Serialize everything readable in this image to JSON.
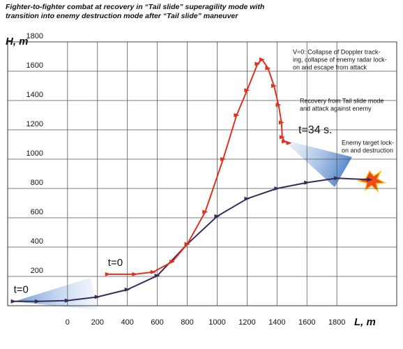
{
  "chart_data": {
    "type": "line",
    "title": "Fighter-to-fighter combat at recovery in “Tail slide” superagility mode with transition into enemy destruction mode after “Tail slide” maneuver",
    "xlabel": "L, m",
    "ylabel": "H, m",
    "xlim": [
      -400,
      2200
    ],
    "ylim": [
      0,
      1800
    ],
    "xticks": [
      0,
      200,
      400,
      600,
      800,
      1000,
      1200,
      1400,
      1600,
      1800
    ],
    "yticks": [
      200,
      400,
      600,
      800,
      1000,
      1200,
      1400,
      1600,
      1800
    ],
    "grid": true,
    "series": [
      {
        "color": "#3a2a5a",
        "start_label": "t=0",
        "x": [
          -360,
          -200,
          0,
          200,
          400,
          600,
          800,
          1000,
          1200,
          1400,
          1600,
          1800,
          2020
        ],
        "values": [
          30,
          30,
          35,
          60,
          110,
          205,
          420,
          610,
          730,
          800,
          840,
          870,
          860
        ]
      },
      {
        "color": "#e0301e",
        "start_label": "t=0",
        "x": [
          270,
          450,
          573,
          700,
          800,
          920,
          1040,
          1130,
          1200,
          1270,
          1300,
          1340,
          1380,
          1410,
          1430,
          1435,
          1450,
          1480
        ],
        "values": [
          215,
          215,
          230,
          300,
          420,
          640,
          1000,
          1300,
          1470,
          1650,
          1680,
          1620,
          1500,
          1370,
          1250,
          1150,
          1120,
          1110
        ]
      }
    ],
    "annotations": [
      {
        "lines": [
          "V=0: Collapse of Doppler track-",
          "ing, collapse of enemy radar lock-",
          "on and escape from attack"
        ]
      },
      {
        "lines": [
          "Recovery from Tail slide mode",
          "and attack against enemy"
        ]
      },
      {
        "lines": [
          "t=34 s."
        ]
      },
      {
        "lines": [
          "Enemy target lock-",
          "on and destruction"
        ]
      }
    ]
  }
}
